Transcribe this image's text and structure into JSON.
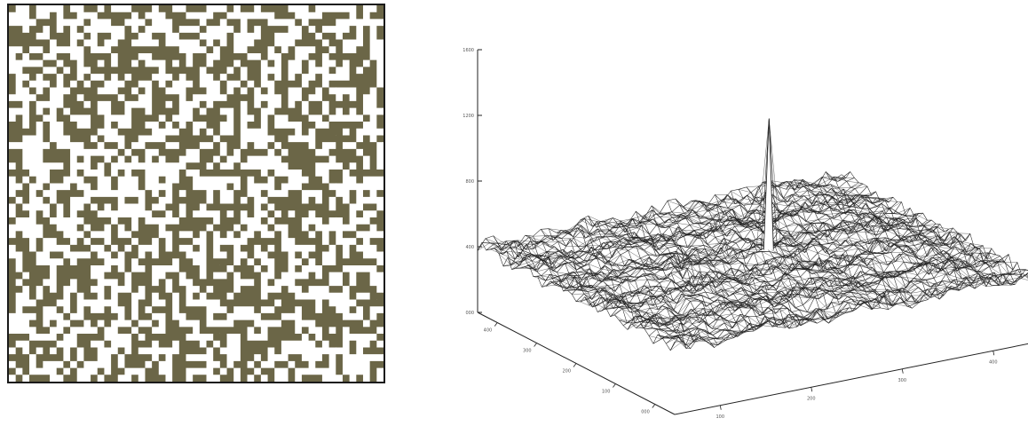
{
  "mask_pattern": {
    "grid_size": 55,
    "fill_color": "#6b6647",
    "background_color": "#ffffff"
  },
  "chart_data": {
    "type": "surface",
    "title": "",
    "z_ticks": [
      "1600",
      "1200",
      "800",
      "400",
      "000"
    ],
    "x_ticks": [
      "100",
      "200",
      "300",
      "400"
    ],
    "y_ticks": [
      "400",
      "300",
      "200",
      "100",
      "000"
    ],
    "z_range": [
      0,
      1600
    ],
    "baseline_level": 400,
    "peak_height": 1200,
    "line_color": "#222222",
    "grid": false
  }
}
